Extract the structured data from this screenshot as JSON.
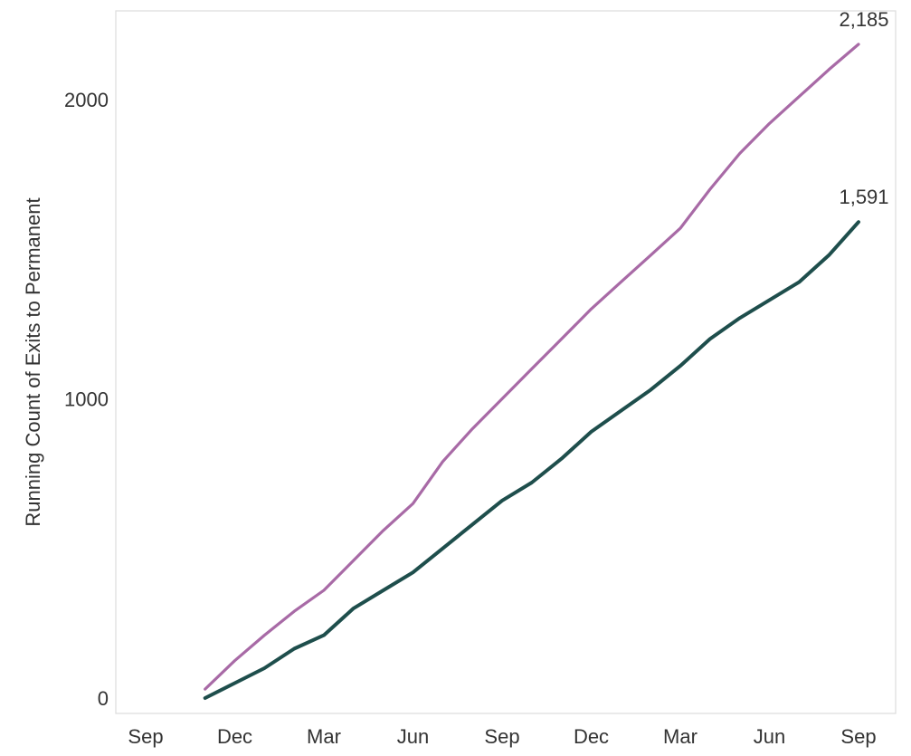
{
  "chart_data": {
    "type": "line",
    "title": "",
    "xlabel": "",
    "ylabel": "Running Count of Exits to Permanent",
    "ylim": [
      0,
      2300
    ],
    "yticks": [
      0,
      1000,
      2000
    ],
    "xtick_labels": [
      "Sep",
      "Dec",
      "Mar",
      "Jun",
      "Sep",
      "Dec",
      "Mar",
      "Jun",
      "Sep"
    ],
    "x_months": 24,
    "grid": false,
    "legend": "none",
    "series": [
      {
        "color": "#a86aa6",
        "end_label": "2,185",
        "values": [
          30,
          125,
          210,
          290,
          360,
          460,
          560,
          650,
          790,
          900,
          1000,
          1100,
          1200,
          1300,
          1390,
          1480,
          1570,
          1700,
          1820,
          1920,
          2010,
          2100,
          2185
        ]
      },
      {
        "color": "#1e4e4c",
        "end_label": "1,591",
        "values": [
          0,
          50,
          100,
          165,
          210,
          300,
          360,
          420,
          500,
          580,
          660,
          720,
          800,
          890,
          960,
          1030,
          1110,
          1200,
          1270,
          1330,
          1390,
          1480,
          1591
        ]
      }
    ]
  }
}
